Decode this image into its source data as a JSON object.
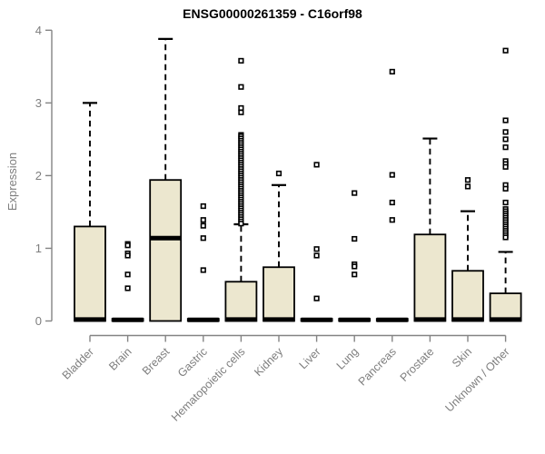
{
  "chart_data": {
    "type": "boxplot",
    "title": "ENSG00000261359 - C16orf98",
    "ylabel": "Expression",
    "xlabel": "",
    "ylim": [
      0,
      4
    ],
    "yticks": [
      0,
      1,
      2,
      3,
      4
    ],
    "grid": false,
    "legend": "none",
    "colors": {
      "box_fill": "#ece7cf",
      "box_border": "#000000",
      "median": "#000000",
      "whisker": "#000000",
      "outlier": "#000000",
      "axis": "#848484",
      "tick_label": "#7e7e7e",
      "title": "#000000",
      "background": "#ffffff"
    },
    "categories": [
      "Bladder",
      "Brain",
      "Breast",
      "Gastric",
      "Hematopoietic cells",
      "Kidney",
      "Liver",
      "Lung",
      "Pancreas",
      "Prostate",
      "Skin",
      "Unknown / Other"
    ],
    "boxes": [
      {
        "category": "Bladder",
        "whisker_low": 0,
        "q1": 0,
        "median": 0.02,
        "q3": 1.3,
        "whisker_high": 3.0,
        "outliers": []
      },
      {
        "category": "Brain",
        "whisker_low": 0,
        "q1": 0,
        "median": 0.015,
        "q3": 0.03,
        "whisker_high": 0.03,
        "outliers": [
          1.06,
          1.04,
          0.93,
          0.9,
          0.64,
          0.45
        ]
      },
      {
        "category": "Breast",
        "whisker_low": 0,
        "q1": 0,
        "median": 1.14,
        "q3": 1.94,
        "whisker_high": 3.88,
        "outliers": []
      },
      {
        "category": "Gastric",
        "whisker_low": 0,
        "q1": 0,
        "median": 0.015,
        "q3": 0.03,
        "whisker_high": 0.03,
        "outliers": [
          1.58,
          1.39,
          1.31,
          1.14,
          0.7
        ]
      },
      {
        "category": "Hematopoietic cells",
        "whisker_low": 0,
        "q1": 0,
        "median": 0.02,
        "q3": 0.54,
        "whisker_high": 1.33,
        "outliers": [
          3.58,
          3.22,
          2.93,
          2.87,
          2.56,
          2.54,
          2.51,
          2.48,
          2.45,
          2.42,
          2.39,
          2.36,
          2.33,
          2.3,
          2.27,
          2.24,
          2.21,
          2.18,
          2.15,
          2.12,
          2.09,
          2.06,
          2.03,
          2.0,
          1.97,
          1.94,
          1.91,
          1.88,
          1.85,
          1.82,
          1.79,
          1.76,
          1.73,
          1.7,
          1.67,
          1.64,
          1.61,
          1.58,
          1.55,
          1.52,
          1.49,
          1.46,
          1.43,
          1.4,
          1.37,
          1.34
        ],
        "note": "dense overlapping outlier column from ~1.34 to ~2.56"
      },
      {
        "category": "Kidney",
        "whisker_low": 0,
        "q1": 0,
        "median": 0.02,
        "q3": 0.74,
        "whisker_high": 1.87,
        "outliers": [
          2.03
        ]
      },
      {
        "category": "Liver",
        "whisker_low": 0,
        "q1": 0,
        "median": 0.015,
        "q3": 0.03,
        "whisker_high": 0.03,
        "outliers": [
          2.15,
          0.99,
          0.9,
          0.31
        ]
      },
      {
        "category": "Lung",
        "whisker_low": 0,
        "q1": 0,
        "median": 0.015,
        "q3": 0.03,
        "whisker_high": 0.03,
        "outliers": [
          1.76,
          1.13,
          0.78,
          0.75,
          0.64
        ]
      },
      {
        "category": "Pancreas",
        "whisker_low": 0,
        "q1": 0,
        "median": 0.015,
        "q3": 0.03,
        "whisker_high": 0.03,
        "outliers": [
          3.43,
          2.01,
          1.63,
          1.39
        ]
      },
      {
        "category": "Prostate",
        "whisker_low": 0,
        "q1": 0,
        "median": 0.02,
        "q3": 1.19,
        "whisker_high": 2.51,
        "outliers": []
      },
      {
        "category": "Skin",
        "whisker_low": 0,
        "q1": 0,
        "median": 0.02,
        "q3": 0.69,
        "whisker_high": 1.51,
        "outliers": [
          1.94,
          1.85
        ]
      },
      {
        "category": "Unknown / Other",
        "whisker_low": 0,
        "q1": 0,
        "median": 0.02,
        "q3": 0.38,
        "whisker_high": 0.95,
        "outliers": [
          3.72,
          2.76,
          2.6,
          2.5,
          2.39,
          2.2,
          2.16,
          2.12,
          1.87,
          1.82,
          1.63,
          1.54,
          1.51,
          1.48,
          1.45,
          1.42,
          1.39,
          1.36,
          1.33,
          1.3,
          1.27,
          1.24,
          1.21,
          1.18,
          1.15
        ],
        "note2": "dense overlapping outlier column from ~1.15 to ~1.54"
      }
    ]
  }
}
